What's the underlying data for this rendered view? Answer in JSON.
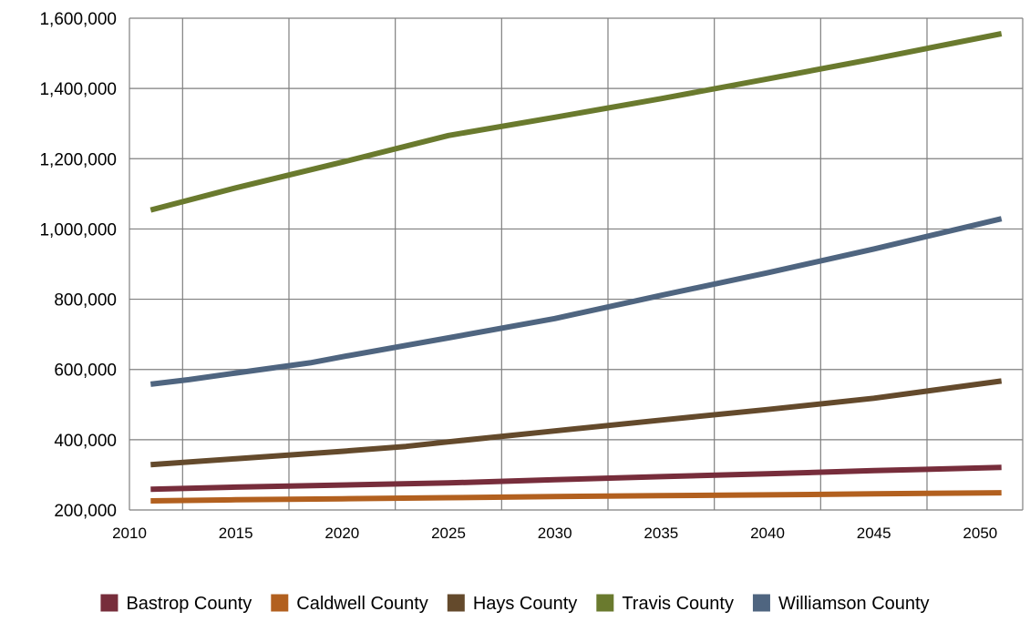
{
  "chart_data": {
    "type": "line",
    "title": "",
    "xlabel": "",
    "ylabel": "",
    "xlim": [
      2010,
      2052
    ],
    "ylim": [
      200000,
      1600000
    ],
    "x_ticks": [
      2010,
      2015,
      2020,
      2025,
      2030,
      2035,
      2040,
      2045,
      2050
    ],
    "x_tick_labels": [
      "2010",
      "2015",
      "2020",
      "2025",
      "2030",
      "2035",
      "2040",
      "2045",
      "2050"
    ],
    "y_ticks": [
      200000,
      400000,
      600000,
      800000,
      1000000,
      1200000,
      1400000,
      1600000
    ],
    "y_tick_labels": [
      "200,000",
      "400,000",
      "600,000",
      "800,000",
      "1,000,000",
      "1,200,000",
      "1,400,000",
      "1,600,000"
    ],
    "grid": true,
    "legend_position": "bottom",
    "series": [
      {
        "name": "Bastrop County",
        "color": "#772d3b",
        "points": [
          [
            2011,
            259000
          ],
          [
            2015,
            265000
          ],
          [
            2020,
            271000
          ],
          [
            2025,
            277000
          ],
          [
            2030,
            286000
          ],
          [
            2035,
            295000
          ],
          [
            2040,
            303000
          ],
          [
            2045,
            312000
          ],
          [
            2051,
            321000
          ]
        ]
      },
      {
        "name": "Caldwell County",
        "color": "#b2601f",
        "points": [
          [
            2011,
            226000
          ],
          [
            2015,
            229000
          ],
          [
            2020,
            232000
          ],
          [
            2025,
            235000
          ],
          [
            2030,
            238000
          ],
          [
            2035,
            241000
          ],
          [
            2040,
            243000
          ],
          [
            2045,
            246000
          ],
          [
            2051,
            249000
          ]
        ]
      },
      {
        "name": "Hays County",
        "color": "#644a2c",
        "points": [
          [
            2011,
            329000
          ],
          [
            2015,
            346000
          ],
          [
            2020,
            367000
          ],
          [
            2023,
            381000
          ],
          [
            2025,
            394000
          ],
          [
            2030,
            425000
          ],
          [
            2035,
            456000
          ],
          [
            2040,
            486000
          ],
          [
            2045,
            518000
          ],
          [
            2051,
            567000
          ]
        ]
      },
      {
        "name": "Travis County",
        "color": "#6a7a2e",
        "points": [
          [
            2011,
            1054000
          ],
          [
            2015,
            1117000
          ],
          [
            2020,
            1190000
          ],
          [
            2025,
            1266000
          ],
          [
            2030,
            1318000
          ],
          [
            2035,
            1371000
          ],
          [
            2040,
            1427000
          ],
          [
            2045,
            1484000
          ],
          [
            2051,
            1556000
          ]
        ]
      },
      {
        "name": "Williamson County",
        "color": "#4f6580",
        "points": [
          [
            2011,
            558000
          ],
          [
            2012.8,
            571000
          ],
          [
            2015,
            590000
          ],
          [
            2018.5,
            619000
          ],
          [
            2020,
            636000
          ],
          [
            2025,
            690000
          ],
          [
            2030,
            745000
          ],
          [
            2035,
            811000
          ],
          [
            2040,
            875000
          ],
          [
            2045,
            943000
          ],
          [
            2051,
            1029000
          ]
        ]
      }
    ]
  }
}
